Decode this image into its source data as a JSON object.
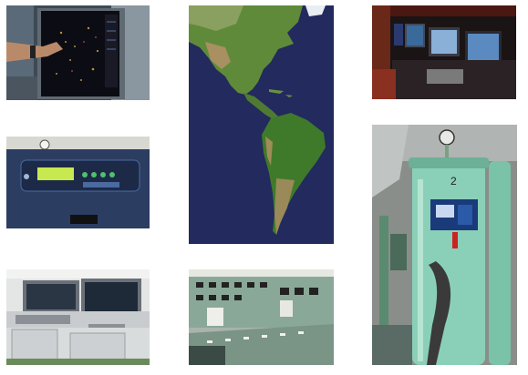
{
  "photos": [
    {
      "subject": "radar-display-touch"
    },
    {
      "subject": "americas-satellite-map"
    },
    {
      "subject": "bridge-monitors-dark"
    },
    {
      "subject": "blue-control-panel"
    },
    {
      "subject": "green-water-treatment-tanks"
    },
    {
      "subject": "ship-bridge-console"
    },
    {
      "subject": "engine-control-room"
    }
  ],
  "panel4": {
    "display_text": ""
  }
}
